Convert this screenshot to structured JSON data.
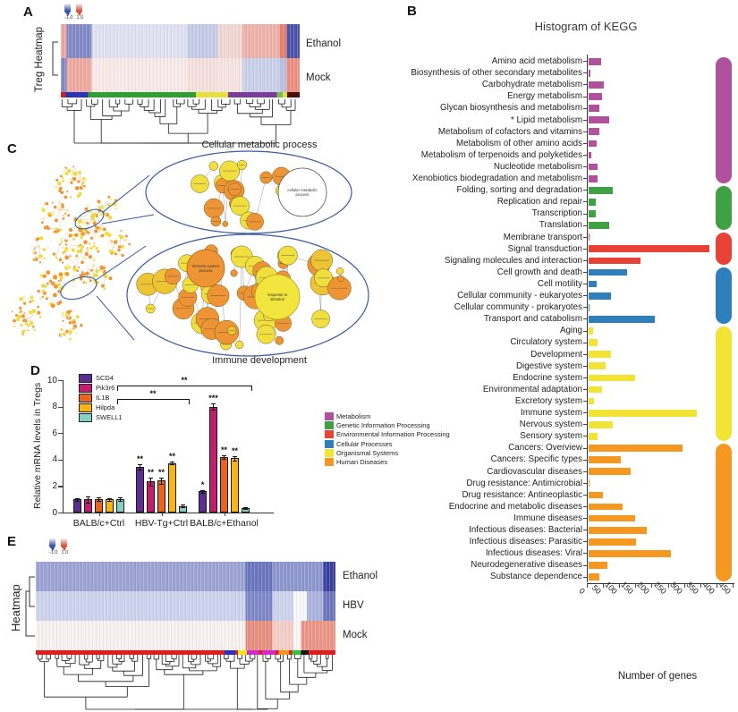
{
  "panels": {
    "a": "A",
    "b": "B",
    "c": "C",
    "d": "D",
    "e": "E"
  },
  "panel_a": {
    "side_label": "Treg Heatmap",
    "scale_min": "-1.0",
    "scale_max": "1.0",
    "row_labels": [
      "Ethanol",
      "Mock"
    ]
  },
  "panel_b": {
    "title": "Histogram of KEGG",
    "xlabel": "Number of genes",
    "legend": [
      {
        "label": "Metabolism",
        "color": "#b0519e"
      },
      {
        "label": "Genetic Information Processing",
        "color": "#3fa044"
      },
      {
        "label": "Environmental Information Processing",
        "color": "#e84135"
      },
      {
        "label": "Cellular Processes",
        "color": "#2f7fbd"
      },
      {
        "label": "Organismal Systems",
        "color": "#f2e434"
      },
      {
        "label": "Human Diseases",
        "color": "#f59822"
      }
    ]
  },
  "panel_c": {
    "top_title": "Cellular metabolic process",
    "bottom_title": "Immune development",
    "node_labels": {
      "white": "cellular metabolic process",
      "yellow": "response to stimulus",
      "orange": "immune system process"
    }
  },
  "panel_e": {
    "side_label": "Heatmap",
    "scale_min": "-1.0",
    "scale_max": "1.0",
    "row_labels": [
      "Ethanol",
      "HBV",
      "Mock"
    ]
  },
  "chart_data": [
    {
      "id": "kegg",
      "type": "bar",
      "orientation": "horizontal",
      "title": "Histogram of KEGG",
      "xlabel": "Number of genes",
      "xlim": [
        0,
        450
      ],
      "xticks": [
        0,
        50,
        100,
        150,
        200,
        250,
        300,
        350,
        400,
        450
      ],
      "legend_position": "left-middle",
      "groups": [
        {
          "name": "Metabolism",
          "color": "#b0519e",
          "items": [
            [
              "Amino acid metabolism",
              40,
              false
            ],
            [
              "Biosynthesis of other secondary metabolites",
              8,
              false
            ],
            [
              "Carbohydrate metabolism",
              47,
              false
            ],
            [
              "Energy metabolism",
              42,
              false
            ],
            [
              "Glycan biosynthesis and metabolism",
              35,
              false
            ],
            [
              "Lipid metabolism",
              65,
              true
            ],
            [
              "Metabolism of cofactors and vitamins",
              33,
              false
            ],
            [
              "Metabolism of other amino acids",
              26,
              false
            ],
            [
              "Metabolism of terpenoids and polyketides",
              9,
              false
            ],
            [
              "Nucleotide metabolism",
              30,
              false
            ],
            [
              "Xenobiotics biodegradation and metabolism",
              28,
              false
            ]
          ]
        },
        {
          "name": "Genetic Information Processing",
          "color": "#3fa044",
          "items": [
            [
              "Folding, sorting and degradation",
              75,
              false
            ],
            [
              "Replication and repair",
              24,
              false
            ],
            [
              "Transcription",
              22,
              false
            ],
            [
              "Translation",
              64,
              false
            ]
          ]
        },
        {
          "name": "Environmental Information Processing",
          "color": "#e84135",
          "items": [
            [
              "Membrane transport",
              4,
              false
            ],
            [
              "Signal transduction",
              375,
              false
            ],
            [
              "Signaling molecules and interaction",
              160,
              false
            ]
          ]
        },
        {
          "name": "Cellular Processes",
          "color": "#2f7fbd",
          "items": [
            [
              "Cell growth and death",
              120,
              false
            ],
            [
              "Cell motility",
              25,
              false
            ],
            [
              "Cellular community - eukaryotes",
              70,
              false
            ],
            [
              "Cellular community - prokaryotes",
              3,
              false
            ],
            [
              "Transport and catabolism",
              205,
              false
            ]
          ]
        },
        {
          "name": "Organismal Systems",
          "color": "#f2e434",
          "items": [
            [
              "Aging",
              16,
              false
            ],
            [
              "Circulatory system",
              28,
              false
            ],
            [
              "Development",
              70,
              false
            ],
            [
              "Digestive system",
              55,
              false
            ],
            [
              "Endocrine system",
              145,
              false
            ],
            [
              "Environmental adaptation",
              44,
              false
            ],
            [
              "Excretory system",
              18,
              false
            ],
            [
              "Immune system",
              335,
              false
            ],
            [
              "Nervous system",
              75,
              false
            ],
            [
              "Sensory system",
              30,
              false
            ]
          ]
        },
        {
          "name": "Human Diseases",
          "color": "#f59822",
          "items": [
            [
              "Cancers: Overview",
              290,
              false
            ],
            [
              "Cancers: Specific types",
              100,
              false
            ],
            [
              "Cardiovascular diseases",
              130,
              false
            ],
            [
              "Drug resistance: Antimicrobial",
              3,
              false
            ],
            [
              "Drug resistance: Antineoplastic",
              45,
              false
            ],
            [
              "Endocrine and metabolic diseases",
              105,
              false
            ],
            [
              "Immune diseases",
              145,
              false
            ],
            [
              "Infectious diseases: Bacterial",
              180,
              false
            ],
            [
              "Infectious diseases: Parasitic",
              148,
              false
            ],
            [
              "Infectious diseases: Viral",
              255,
              false
            ],
            [
              "Neurodegenerative diseases",
              60,
              false
            ],
            [
              "Substance dependence",
              35,
              false
            ]
          ]
        }
      ]
    },
    {
      "id": "mrna",
      "type": "bar",
      "ylabel": "Relative mRNA levels in Tregs",
      "ylim": [
        0,
        10
      ],
      "yticks": [
        0,
        2,
        4,
        6,
        8,
        10
      ],
      "categories": [
        "BALB/c+Ctrl",
        "HBV-Tg+Ctrl",
        "BALB/c+Ethanol"
      ],
      "series": [
        {
          "name": "SCD4",
          "color": "#5c2e91",
          "values": [
            1.0,
            3.45,
            1.6
          ],
          "errors": [
            0.1,
            0.2,
            0.12
          ],
          "sig": [
            "",
            "**",
            "*"
          ]
        },
        {
          "name": "Pik3r6",
          "color": "#c01f6d",
          "values": [
            1.0,
            2.35,
            8.0
          ],
          "errors": [
            0.25,
            0.3,
            0.25
          ],
          "sig": [
            "",
            "**",
            "***"
          ]
        },
        {
          "name": "IL1B",
          "color": "#e8641f",
          "values": [
            1.0,
            2.4,
            4.2
          ],
          "errors": [
            0.15,
            0.25,
            0.15
          ],
          "sig": [
            "",
            "**",
            "**"
          ]
        },
        {
          "name": "Hilpda",
          "color": "#f7b516",
          "values": [
            1.0,
            3.75,
            4.1
          ],
          "errors": [
            0.1,
            0.12,
            0.15
          ],
          "sig": [
            "",
            "**",
            "**"
          ]
        },
        {
          "name": "SWELL1",
          "color": "#86cfc5",
          "values": [
            1.0,
            0.5,
            0.35
          ],
          "errors": [
            0.15,
            0.08,
            0.08
          ],
          "sig": [
            "",
            "",
            ""
          ]
        }
      ],
      "brackets": [
        {
          "from_cat": 0,
          "to_cat": 1,
          "y": 8.6,
          "label": "**"
        },
        {
          "from_cat": 0,
          "to_cat": 2,
          "y": 9.6,
          "label": "**"
        }
      ]
    },
    {
      "id": "heatA",
      "type": "heatmap",
      "rows": [
        "Ethanol",
        "Mock"
      ],
      "scale": [
        -1.0,
        1.0
      ],
      "row_segments": [
        [
          [
            0,
            0.025,
            "#eba79d"
          ],
          [
            0.025,
            0.13,
            "#8289c7"
          ],
          [
            0.13,
            0.53,
            "#e0e2f2"
          ],
          [
            0.53,
            0.655,
            "#c5cae9"
          ],
          [
            0.655,
            0.76,
            "#f1d6d2"
          ],
          [
            0.76,
            0.915,
            "#eeb2aa"
          ],
          [
            0.915,
            0.945,
            "#e77e6f"
          ],
          [
            0.945,
            1,
            "#4a54a9"
          ]
        ],
        [
          [
            0,
            0.025,
            "#8289c7"
          ],
          [
            0.025,
            0.13,
            "#efaaa0"
          ],
          [
            0.13,
            0.53,
            "#f8eae8"
          ],
          [
            0.53,
            0.655,
            "#f6e0dd"
          ],
          [
            0.655,
            0.76,
            "#f6e4e1"
          ],
          [
            0.76,
            0.915,
            "#cbd0ea"
          ],
          [
            0.915,
            0.945,
            "#b9c0e2"
          ],
          [
            0.945,
            1,
            "#ec8e80"
          ]
        ]
      ],
      "annotation_segments": [
        [
          0,
          0.02,
          "#cc2222"
        ],
        [
          0.02,
          0.115,
          "#2834ba"
        ],
        [
          0.115,
          0.565,
          "#2f9e33"
        ],
        [
          0.565,
          0.7,
          "#e6e03a"
        ],
        [
          0.7,
          0.905,
          "#7a3b9b"
        ],
        [
          0.905,
          0.928,
          "#76c043"
        ],
        [
          0.928,
          0.948,
          "#e6e03a"
        ],
        [
          0.948,
          1,
          "#4a0d0d"
        ]
      ]
    },
    {
      "id": "heatE",
      "type": "heatmap",
      "rows": [
        "Ethanol",
        "HBV",
        "Mock"
      ],
      "scale": [
        -1.0,
        1.0
      ],
      "row_segments": [
        [
          [
            0,
            0.7,
            "#9ba3d4"
          ],
          [
            0.7,
            0.79,
            "#6a75bd"
          ],
          [
            0.79,
            0.96,
            "#8e97cd"
          ],
          [
            0.96,
            1,
            "#3a40a0"
          ]
        ],
        [
          [
            0,
            0.7,
            "#cdd2ed"
          ],
          [
            0.7,
            0.79,
            "#7e88c6"
          ],
          [
            0.79,
            0.86,
            "#cdd2ed"
          ],
          [
            0.86,
            0.905,
            "#f7f7fb"
          ],
          [
            0.905,
            0.96,
            "#aab2dc"
          ],
          [
            0.96,
            1,
            "#6a75bd"
          ]
        ],
        [
          [
            0,
            0.7,
            "#f7f1f0"
          ],
          [
            0.7,
            0.79,
            "#e78e7f"
          ],
          [
            0.79,
            0.86,
            "#f3cec7"
          ],
          [
            0.86,
            0.885,
            "#fbf7f6"
          ],
          [
            0.885,
            1,
            "#ea9586"
          ]
        ]
      ],
      "annotation_segments": [
        [
          0,
          0.63,
          "#e01c1c"
        ],
        [
          0.63,
          0.665,
          "#2431c8"
        ],
        [
          0.665,
          0.675,
          "#e01c1c"
        ],
        [
          0.675,
          0.705,
          "#f2e418"
        ],
        [
          0.705,
          0.745,
          "#cd2bcd"
        ],
        [
          0.745,
          0.755,
          "#e01c1c"
        ],
        [
          0.755,
          0.8,
          "#cd2bcd"
        ],
        [
          0.8,
          0.81,
          "#e01c1c"
        ],
        [
          0.81,
          0.845,
          "#f59420"
        ],
        [
          0.845,
          0.855,
          "#e01c1c"
        ],
        [
          0.855,
          0.885,
          "#35c435"
        ],
        [
          0.885,
          0.91,
          "#141414"
        ],
        [
          0.91,
          1,
          "#e01c1c"
        ]
      ]
    }
  ]
}
